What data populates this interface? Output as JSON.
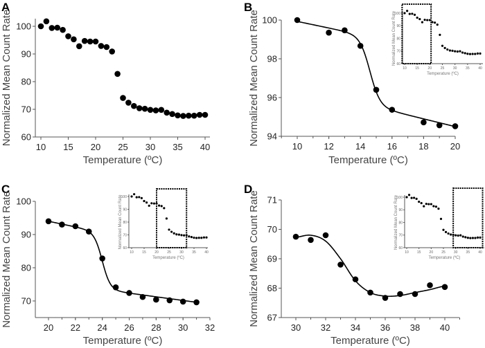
{
  "chart_data": [
    {
      "id": "A",
      "type": "scatter",
      "panel_label": "A",
      "title": "",
      "xlabel": "Temperature (ºC)",
      "ylabel": "Normalized Mean Count Rate",
      "xlim": [
        9,
        41
      ],
      "ylim": [
        60,
        102
      ],
      "xticks": [
        10,
        15,
        20,
        25,
        30,
        35,
        40
      ],
      "yticks": [
        60,
        70,
        80,
        90,
        100
      ],
      "fit_curve": false,
      "x": [
        10,
        11,
        12,
        13,
        14,
        15,
        16,
        17,
        18,
        19,
        20,
        21,
        22,
        23,
        24,
        25,
        26,
        27,
        28,
        29,
        30,
        31,
        32,
        33,
        34,
        35,
        36,
        37,
        38,
        39,
        40
      ],
      "y": [
        100,
        101.8,
        99.4,
        99.5,
        98.7,
        96.4,
        95.3,
        92.8,
        94.7,
        94.5,
        94.5,
        92.9,
        92.5,
        90.9,
        82.8,
        74.1,
        72.4,
        71.2,
        70.4,
        70.2,
        69.8,
        69.6,
        69.8,
        68.8,
        68.3,
        67.8,
        67.6,
        67.7,
        67.7,
        68.0,
        68.0
      ]
    },
    {
      "id": "B",
      "type": "scatter",
      "panel_label": "B",
      "title": "",
      "xlabel": "Temperature (ºC)",
      "ylabel": "Normalized Mean Count Rate",
      "xlim": [
        9,
        20
      ],
      "ylim": [
        94,
        100
      ],
      "xticks": [
        10,
        12,
        14,
        16,
        18,
        20
      ],
      "yticks": [
        94,
        96,
        98,
        100
      ],
      "fit_curve": true,
      "fit": {
        "model": "sigmoid_with_linear_baselines",
        "top_at_10": 99.93,
        "top_slope": -0.17,
        "bottom_at_20": 94.5,
        "bottom_slope": -0.2,
        "midpoint": 14.6,
        "width": 0.32
      },
      "x": [
        10,
        12,
        13,
        14,
        15,
        16,
        18,
        19,
        20
      ],
      "y": [
        100,
        99.35,
        99.47,
        98.67,
        96.4,
        95.37,
        94.72,
        94.57,
        94.52
      ],
      "inset": {
        "highlight_range": [
          9,
          20.5
        ],
        "xlabel": "Temperature (ºC)",
        "ylabel": "Normalized Mean Count Rate"
      }
    },
    {
      "id": "C",
      "type": "scatter",
      "panel_label": "C",
      "title": "",
      "xlabel": "Temperature (ºC)",
      "ylabel": "Normalized Mean Count Rate",
      "xlim": [
        19,
        32
      ],
      "ylim": [
        65,
        100
      ],
      "xticks": [
        20,
        22,
        24,
        26,
        28,
        30,
        32
      ],
      "yticks": [
        70,
        80,
        90,
        100
      ],
      "fit_curve": true,
      "fit": {
        "model": "sigmoid_with_linear_baselines",
        "top_at_20": 94.0,
        "top_slope": -0.85,
        "bottom_at_31": 69.6,
        "bottom_slope": -0.55,
        "midpoint": 24.0,
        "width": 0.3
      },
      "x": [
        20,
        21,
        22,
        23,
        24,
        25,
        26,
        27,
        28,
        29,
        30,
        31
      ],
      "y": [
        94.0,
        93.0,
        92.5,
        90.9,
        82.8,
        74.1,
        72.4,
        71.2,
        70.4,
        70.2,
        69.8,
        69.6
      ],
      "inset": {
        "highlight_range": [
          20,
          32
        ],
        "xlabel": "Temperature (ºC)",
        "ylabel": "Normalized Mean Count Rate"
      }
    },
    {
      "id": "D",
      "type": "scatter",
      "panel_label": "D",
      "title": "",
      "xlabel": "Temperature (ºC)",
      "ylabel": "Normalized Mean Count Rate",
      "xlim": [
        29,
        41
      ],
      "ylim": [
        67,
        71
      ],
      "xticks": [
        30,
        32,
        34,
        36,
        38,
        40
      ],
      "yticks": [
        67,
        68,
        69,
        70,
        71
      ],
      "fit_curve": true,
      "fit": {
        "model": "smooth_curve",
        "points_x": [
          30,
          31,
          32,
          33,
          34,
          35,
          36,
          37,
          38,
          39,
          40
        ],
        "points_y": [
          69.73,
          69.8,
          69.6,
          69.0,
          68.25,
          67.85,
          67.73,
          67.75,
          67.85,
          67.95,
          68.07
        ]
      },
      "x": [
        30,
        31,
        32,
        33,
        34,
        35,
        36,
        37,
        38,
        39,
        40
      ],
      "y": [
        69.75,
        69.64,
        69.8,
        68.8,
        68.3,
        67.85,
        67.67,
        67.8,
        67.8,
        68.1,
        68.04
      ],
      "inset": {
        "highlight_range": [
          29,
          41
        ],
        "xlabel": "Temperature (ºC)",
        "ylabel": "Normalized Mean Count Rate"
      }
    }
  ],
  "inset_data": {
    "xlim": [
      9,
      41
    ],
    "ylim": [
      60,
      105
    ],
    "xticks": [
      10,
      15,
      20,
      25,
      30,
      35,
      40
    ],
    "yticks": [
      60,
      70,
      80,
      90,
      100
    ]
  }
}
